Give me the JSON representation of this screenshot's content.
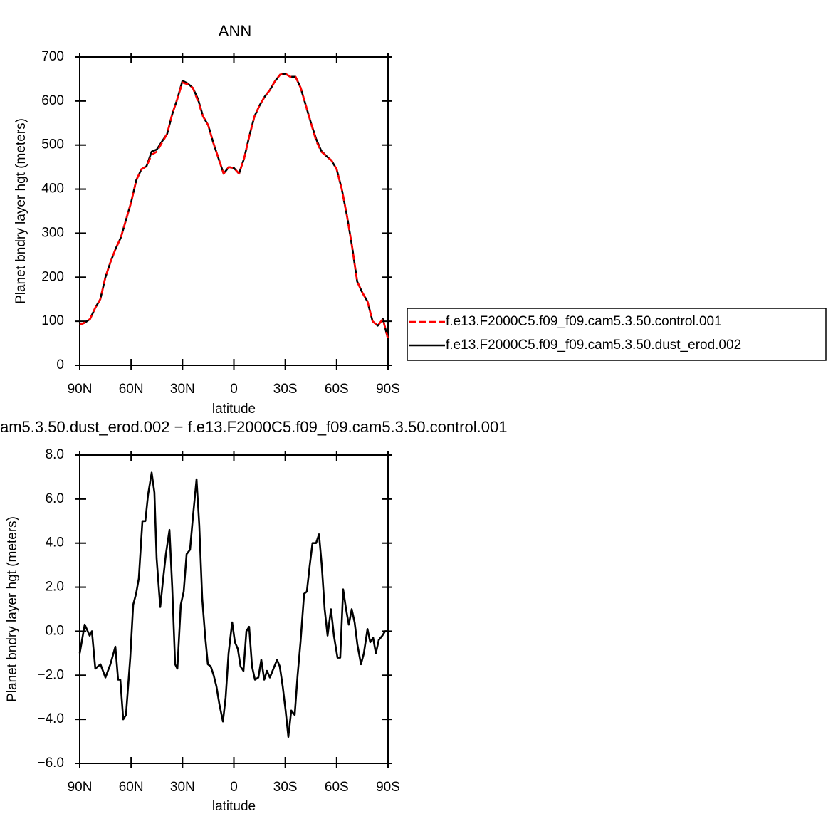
{
  "chart_data": [
    {
      "type": "line",
      "title": "ANN",
      "xlabel": "latitude",
      "ylabel": "Planet bndry layer hgt (meters)",
      "x": [
        90,
        87,
        84,
        81,
        78,
        75,
        72,
        69,
        66,
        63,
        60,
        57,
        54,
        51,
        48,
        45,
        42,
        39,
        36,
        33,
        30,
        27,
        24,
        21,
        18,
        15,
        12,
        9,
        6,
        3,
        0,
        -3,
        -6,
        -9,
        -12,
        -15,
        -18,
        -21,
        -24,
        -27,
        -30,
        -33,
        -36,
        -39,
        -42,
        -45,
        -48,
        -51,
        -54,
        -57,
        -60,
        -63,
        -66,
        -69,
        -72,
        -75,
        -78,
        -81,
        -84,
        -87,
        -90
      ],
      "series": [
        {
          "name": "f.e13.F2000C5.f09_f09.cam5.3.50.control.001",
          "color": "#ff0000",
          "dashed": true,
          "values": [
            92,
            97,
            105,
            130,
            150,
            200,
            235,
            265,
            290,
            330,
            370,
            420,
            445,
            452,
            478,
            485,
            505,
            525,
            570,
            605,
            642,
            638,
            630,
            600,
            565,
            545,
            505,
            470,
            435,
            450,
            448,
            435,
            470,
            520,
            565,
            590,
            610,
            625,
            645,
            660,
            662,
            655,
            655,
            630,
            590,
            550,
            510,
            485,
            475,
            465,
            445,
            400,
            340,
            270,
            190,
            165,
            145,
            100,
            90,
            105,
            60
          ]
        },
        {
          "name": "f.e13.F2000C5.f09_f09.cam5.3.50.dust_erod.002",
          "color": "#000000",
          "dashed": false,
          "values": [
            92,
            97,
            105,
            130,
            150,
            200,
            235,
            265,
            290,
            330,
            370,
            420,
            445,
            452,
            485,
            490,
            508,
            525,
            570,
            605,
            646,
            640,
            630,
            605,
            565,
            545,
            505,
            470,
            435,
            450,
            448,
            435,
            470,
            520,
            565,
            590,
            610,
            625,
            645,
            660,
            662,
            655,
            655,
            630,
            590,
            550,
            514,
            487,
            475,
            465,
            445,
            400,
            340,
            270,
            190,
            165,
            145,
            100,
            90,
            105,
            60
          ]
        }
      ],
      "xlim": [
        90,
        -90
      ],
      "xticks": [
        {
          "value": 90,
          "label": "90N"
        },
        {
          "value": 60,
          "label": "60N"
        },
        {
          "value": 30,
          "label": "30N"
        },
        0,
        {
          "value": -30,
          "label": "30S"
        },
        {
          "value": -60,
          "label": "60S"
        },
        {
          "value": -90,
          "label": "90S"
        }
      ],
      "ylim": [
        0,
        700
      ],
      "yticks": [
        0,
        100,
        200,
        300,
        400,
        500,
        600,
        700
      ],
      "legend": "right"
    },
    {
      "type": "line",
      "title": "am5.3.50.dust_erod.002 − f.e13.F2000C5.f09_f09.cam5.3.50.control.001",
      "xlabel": "latitude",
      "ylabel": "Planet bndry layer hgt (meters)",
      "x": [
        90,
        87.1,
        84.2,
        82.9,
        80.9,
        77.9,
        75,
        72.1,
        69.2,
        67.6,
        66.3,
        64.6,
        63,
        60.5,
        58.8,
        57.1,
        55.5,
        53.4,
        51.7,
        50.1,
        48,
        46.4,
        45.1,
        43,
        41.4,
        39.7,
        37.6,
        36,
        34.3,
        33,
        31,
        29.3,
        27.6,
        25.6,
        23.9,
        21.8,
        20.2,
        18.5,
        16.8,
        15.2,
        13.5,
        11.8,
        10.2,
        8.5,
        6.4,
        4.8,
        3.1,
        1,
        -0.6,
        -2.3,
        -3.9,
        -5.6,
        -7.3,
        -8.9,
        -10.6,
        -12.3,
        -14.3,
        -16,
        -17.7,
        -19.3,
        -21,
        -23.1,
        -25.2,
        -26.8,
        -28.5,
        -30.2,
        -31.8,
        -33.5,
        -35.5,
        -37.2,
        -38.9,
        -41,
        -42.6,
        -44.3,
        -45.9,
        -48,
        -49.7,
        -51.3,
        -53,
        -54.7,
        -56.7,
        -58.4,
        -60.5,
        -62.1,
        -63.8,
        -65.5,
        -67.1,
        -68.8,
        -70.5,
        -72.1,
        -74.2,
        -75.9,
        -78,
        -79.6,
        -81.3,
        -82.9,
        -84.6,
        -86.7,
        -88.3,
        -90
      ],
      "values": [
        -1.0,
        0.3,
        -0.2,
        0.0,
        -1.7,
        -1.5,
        -2.1,
        -1.5,
        -0.7,
        -2.2,
        -2.2,
        -4.0,
        -3.8,
        -1.2,
        1.2,
        1.7,
        2.4,
        5.0,
        5.0,
        6.2,
        7.2,
        6.3,
        3.3,
        1.1,
        2.3,
        3.5,
        4.6,
        2.0,
        -1.5,
        -1.7,
        1.2,
        1.8,
        3.5,
        3.7,
        5.2,
        6.9,
        4.8,
        1.5,
        -0.2,
        -1.5,
        -1.6,
        -2.0,
        -2.5,
        -3.3,
        -4.1,
        -3.0,
        -1.0,
        0.4,
        -0.5,
        -0.8,
        -1.6,
        -1.8,
        0.0,
        0.2,
        -1.6,
        -2.2,
        -2.1,
        -1.3,
        -2.2,
        -1.8,
        -2.1,
        -1.7,
        -1.3,
        -1.6,
        -2.5,
        -3.6,
        -4.8,
        -3.6,
        -3.8,
        -2.0,
        -0.5,
        1.7,
        1.8,
        3.0,
        4.0,
        4.0,
        4.4,
        3.0,
        1.0,
        -0.2,
        1.0,
        -0.2,
        -1.2,
        -1.2,
        1.9,
        1.0,
        0.3,
        1.0,
        0.4,
        -0.6,
        -1.5,
        -1.0,
        0.1,
        -0.5,
        -0.3,
        -1.0,
        -0.4,
        -0.2,
        0.0,
        0.0
      ],
      "color": "#000000",
      "xlim": [
        90,
        -90
      ],
      "xticks": [
        {
          "value": 90,
          "label": "90N"
        },
        {
          "value": 60,
          "label": "60N"
        },
        {
          "value": 30,
          "label": "30N"
        },
        0,
        {
          "value": -30,
          "label": "30S"
        },
        {
          "value": -60,
          "label": "60S"
        },
        {
          "value": -90,
          "label": "90S"
        }
      ],
      "ylim": [
        -6,
        8
      ],
      "yticks": [
        {
          "value": -6,
          "label": "−6.0"
        },
        {
          "value": -4,
          "label": "−4.0"
        },
        {
          "value": -2,
          "label": "−2.0"
        },
        {
          "value": 0,
          "label": "0.0"
        },
        {
          "value": 2,
          "label": "2.0"
        },
        {
          "value": 4,
          "label": "4.0"
        },
        {
          "value": 6,
          "label": "6.0"
        },
        {
          "value": 8,
          "label": "8.0"
        }
      ]
    }
  ]
}
